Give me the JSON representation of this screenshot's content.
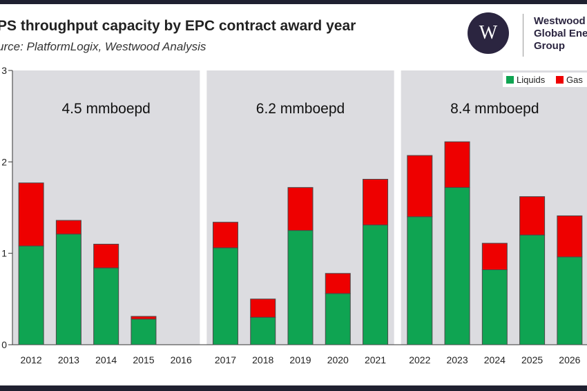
{
  "header": {
    "title": "PS throughput capacity by EPC contract award year",
    "subtitle": "urce: PlatformLogix, Westwood Analysis",
    "logo_letter": "W",
    "brand_lines": [
      "Westwood",
      "Global Ene",
      "Group"
    ]
  },
  "colors": {
    "liquids": "#0fa452",
    "gas": "#ee0000",
    "panel": "#dcdce0"
  },
  "chart_data": {
    "type": "bar",
    "stacked": true,
    "categories": [
      "2012",
      "2013",
      "2014",
      "2015",
      "2016",
      "2017",
      "2018",
      "2019",
      "2020",
      "2021",
      "2022",
      "2023",
      "2024",
      "2025",
      "2026"
    ],
    "series": [
      {
        "name": "Liquids",
        "values": [
          1.08,
          1.21,
          0.84,
          0.28,
          0,
          1.06,
          0.3,
          1.25,
          0.56,
          1.31,
          1.4,
          1.72,
          0.82,
          1.2,
          0.96
        ]
      },
      {
        "name": "Gas",
        "values": [
          0.69,
          0.15,
          0.26,
          0.03,
          0,
          0.28,
          0.2,
          0.47,
          0.22,
          0.5,
          0.67,
          0.5,
          0.29,
          0.42,
          0.45
        ]
      }
    ],
    "ylim": [
      0,
      3
    ],
    "yticks": [
      0,
      1,
      2,
      3
    ],
    "ytick_labels": [
      "0",
      "1",
      "2",
      "3"
    ],
    "groups": [
      {
        "label": "4.5 mmboepd",
        "categories": [
          "2012",
          "2013",
          "2014",
          "2015",
          "2016"
        ]
      },
      {
        "label": "6.2 mmboepd",
        "categories": [
          "2017",
          "2018",
          "2019",
          "2020",
          "2021"
        ]
      },
      {
        "label": "8.4 mmboepd",
        "categories": [
          "2022",
          "2023",
          "2024",
          "2025",
          "2026"
        ]
      }
    ],
    "legend": {
      "position": "top-right",
      "entries": [
        "Liquids",
        "Gas"
      ]
    },
    "grid": false
  }
}
